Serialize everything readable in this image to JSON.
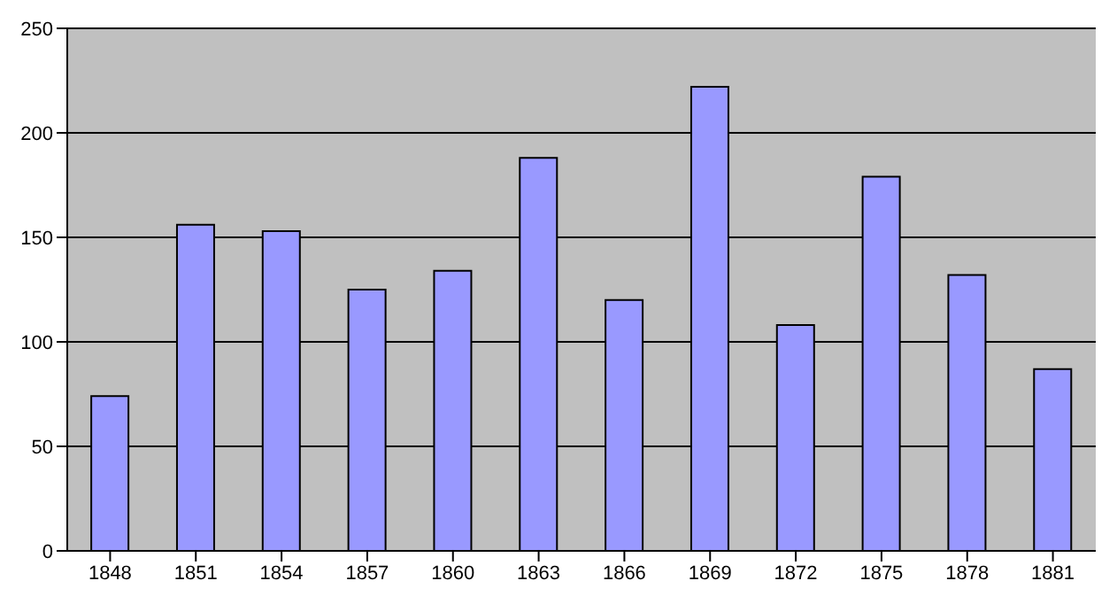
{
  "chart_data": {
    "type": "bar",
    "categories": [
      "1848",
      "1851",
      "1854",
      "1857",
      "1860",
      "1863",
      "1866",
      "1869",
      "1872",
      "1875",
      "1878",
      "1881"
    ],
    "values": [
      74,
      156,
      153,
      125,
      134,
      188,
      120,
      222,
      108,
      179,
      132,
      87
    ],
    "color": "#9999ff",
    "ylim": [
      0,
      250
    ],
    "yticks": [
      0,
      50,
      100,
      150,
      200,
      250
    ],
    "grid": "y",
    "legend": false
  }
}
